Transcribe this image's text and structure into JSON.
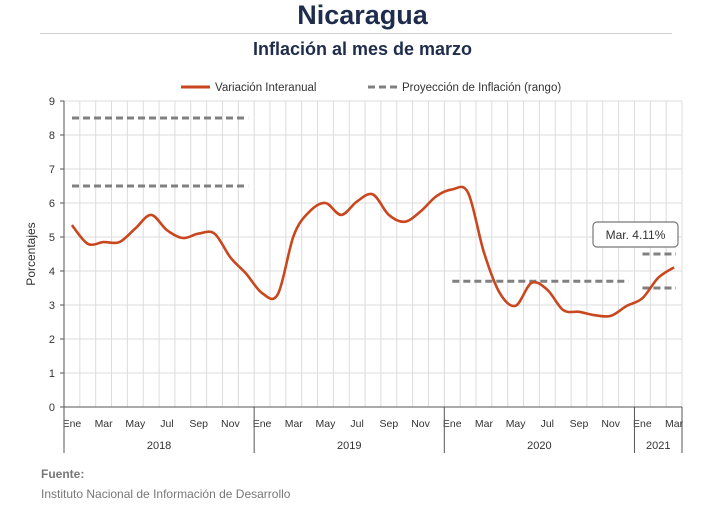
{
  "header": {
    "title": "Nicaragua",
    "subtitle": "Inflación al mes de marzo"
  },
  "source": {
    "label": "Fuente:",
    "text": "Instituto Nacional de Información de  Desarrollo"
  },
  "chart_data": {
    "type": "line",
    "ylabel": "Porcentajes",
    "ylim": [
      0,
      9
    ],
    "yticks": [
      "0",
      "1",
      "2",
      "3",
      "4",
      "5",
      "6",
      "7",
      "8",
      "9"
    ],
    "grid": true,
    "legend_position": "top",
    "x": [
      "2018-01",
      "2018-02",
      "2018-03",
      "2018-04",
      "2018-05",
      "2018-06",
      "2018-07",
      "2018-08",
      "2018-09",
      "2018-10",
      "2018-11",
      "2018-12",
      "2019-01",
      "2019-02",
      "2019-03",
      "2019-04",
      "2019-05",
      "2019-06",
      "2019-07",
      "2019-08",
      "2019-09",
      "2019-10",
      "2019-11",
      "2019-12",
      "2020-01",
      "2020-02",
      "2020-03",
      "2020-04",
      "2020-05",
      "2020-06",
      "2020-07",
      "2020-08",
      "2020-09",
      "2020-10",
      "2020-11",
      "2020-12",
      "2021-01",
      "2021-02",
      "2021-03"
    ],
    "month_labels": [
      "Ene",
      "",
      "Mar",
      "",
      "May",
      "",
      "Jul",
      "",
      "Sep",
      "",
      "Nov",
      "",
      "Ene",
      "",
      "Mar",
      "",
      "May",
      "",
      "Jul",
      "",
      "Sep",
      "",
      "Nov",
      "",
      "Ene",
      "",
      "Mar",
      "",
      "May",
      "",
      "Jul",
      "",
      "Sep",
      "",
      "Nov",
      "",
      "Ene",
      "",
      "Mar"
    ],
    "years": [
      {
        "label": "2018",
        "start": 0,
        "count": 12
      },
      {
        "label": "2019",
        "start": 12,
        "count": 12
      },
      {
        "label": "2020",
        "start": 24,
        "count": 12
      },
      {
        "label": "2021",
        "start": 36,
        "count": 3
      }
    ],
    "series": [
      {
        "name": "Variación Interanual",
        "color": "#c8471e",
        "style": "solid",
        "values": [
          5.35,
          4.8,
          4.85,
          4.85,
          5.25,
          5.65,
          5.2,
          4.97,
          5.1,
          5.1,
          4.4,
          3.92,
          3.35,
          3.32,
          5.05,
          5.75,
          6.0,
          5.65,
          6.05,
          6.25,
          5.65,
          5.45,
          5.75,
          6.2,
          6.4,
          6.3,
          4.55,
          3.35,
          2.98,
          3.65,
          3.45,
          2.85,
          2.8,
          2.7,
          2.68,
          2.97,
          3.2,
          3.8,
          4.11
        ]
      }
    ],
    "projection": {
      "name": "Proyección de Inflación (rango)",
      "color": "#808080",
      "segments": [
        {
          "from": "2018-01",
          "to": "2018-12",
          "y": 8.5
        },
        {
          "from": "2018-01",
          "to": "2018-12",
          "y": 6.5
        },
        {
          "from": "2020-01",
          "to": "2020-12",
          "y": 3.7
        },
        {
          "from": "2021-01",
          "to": "2021-03",
          "y": 4.5
        },
        {
          "from": "2021-01",
          "to": "2021-03",
          "y": 3.5
        }
      ]
    },
    "annotation": {
      "text": "Mar. 4.11%",
      "at": "2021-03",
      "value": 4.11
    }
  }
}
